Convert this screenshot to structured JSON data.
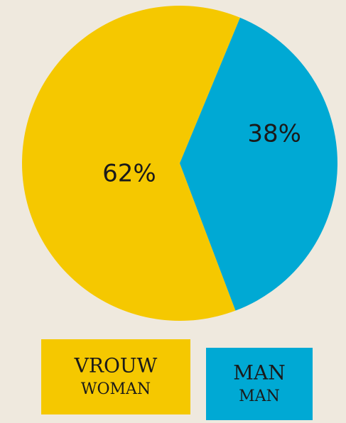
{
  "chart_data": {
    "type": "pie",
    "categories": [
      "VROUW",
      "MAN"
    ],
    "category_translations": [
      "WOMAN",
      "MAN"
    ],
    "values": [
      62,
      38
    ],
    "value_labels": [
      "62%",
      "38%"
    ],
    "colors": [
      "#f5c800",
      "#00a9d4"
    ]
  }
}
